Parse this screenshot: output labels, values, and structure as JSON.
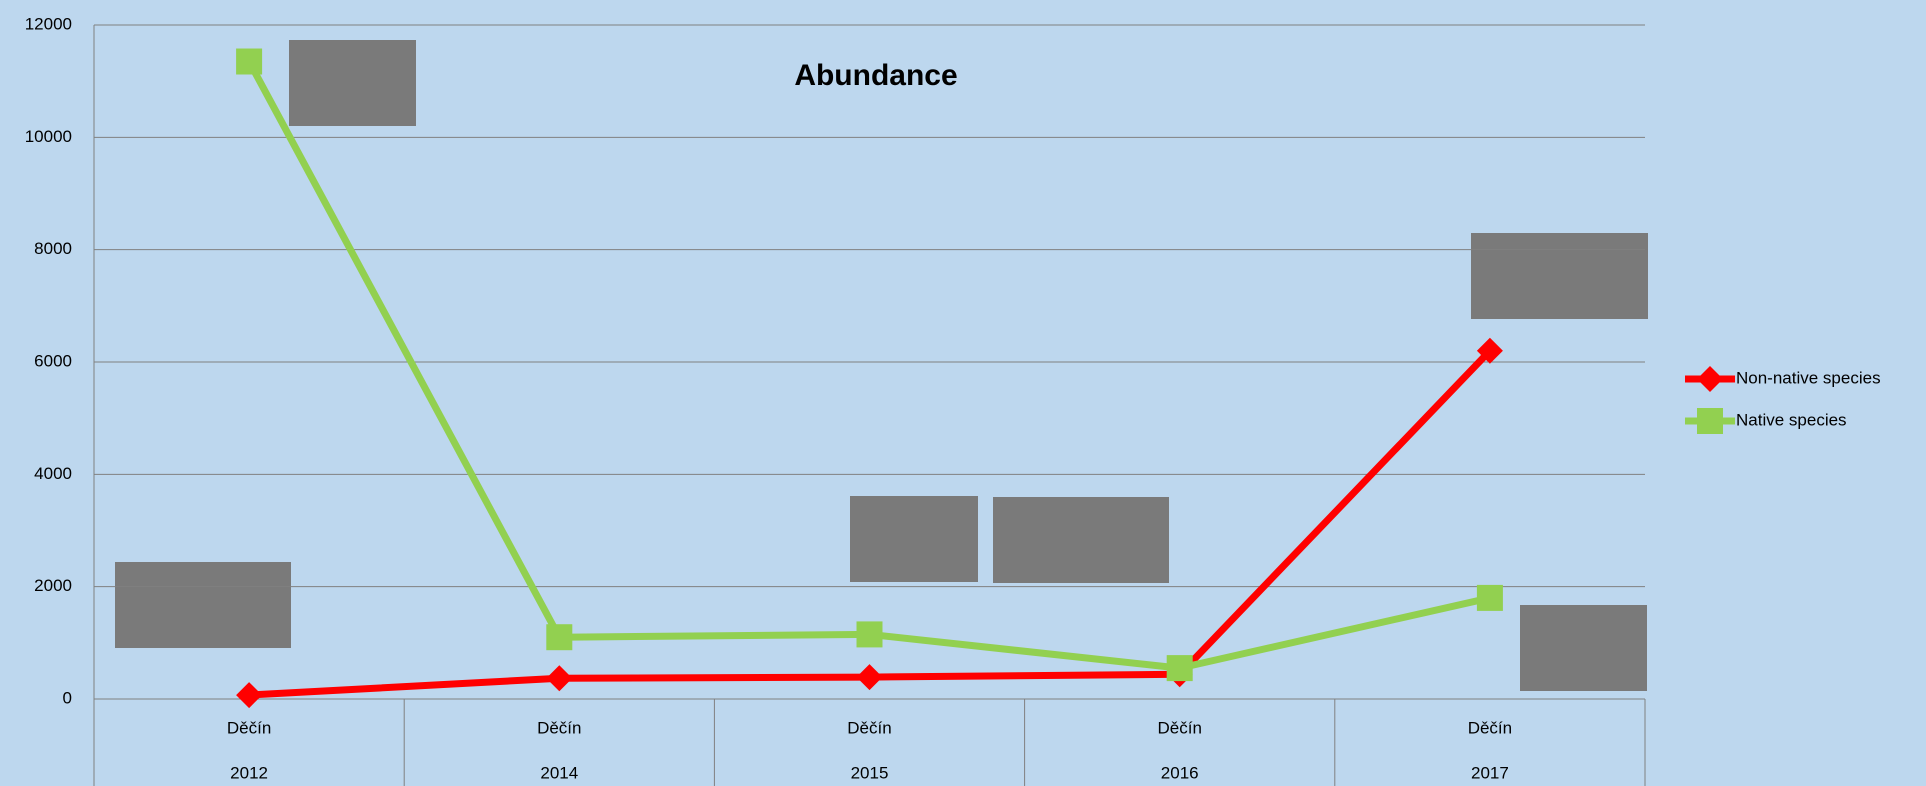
{
  "chart_data": {
    "type": "line",
    "title": "Abundance",
    "categories": [
      "Děčín",
      "Děčín",
      "Děčín",
      "Děčín",
      "Děčín"
    ],
    "years": [
      "2012",
      "2014",
      "2015",
      "2016",
      "2017"
    ],
    "series": [
      {
        "name": "Non-native species",
        "color": "#ff0000",
        "marker": "diamond",
        "values": [
          70,
          370,
          390,
          440,
          6200
        ]
      },
      {
        "name": "Native species",
        "color": "#92d050",
        "marker": "square",
        "values": [
          11350,
          1100,
          1150,
          550,
          1800
        ]
      }
    ],
    "ylim": [
      0,
      12000
    ],
    "yticks": [
      0,
      2000,
      4000,
      6000,
      8000,
      10000,
      12000
    ],
    "grid": true,
    "legend": "right"
  }
}
